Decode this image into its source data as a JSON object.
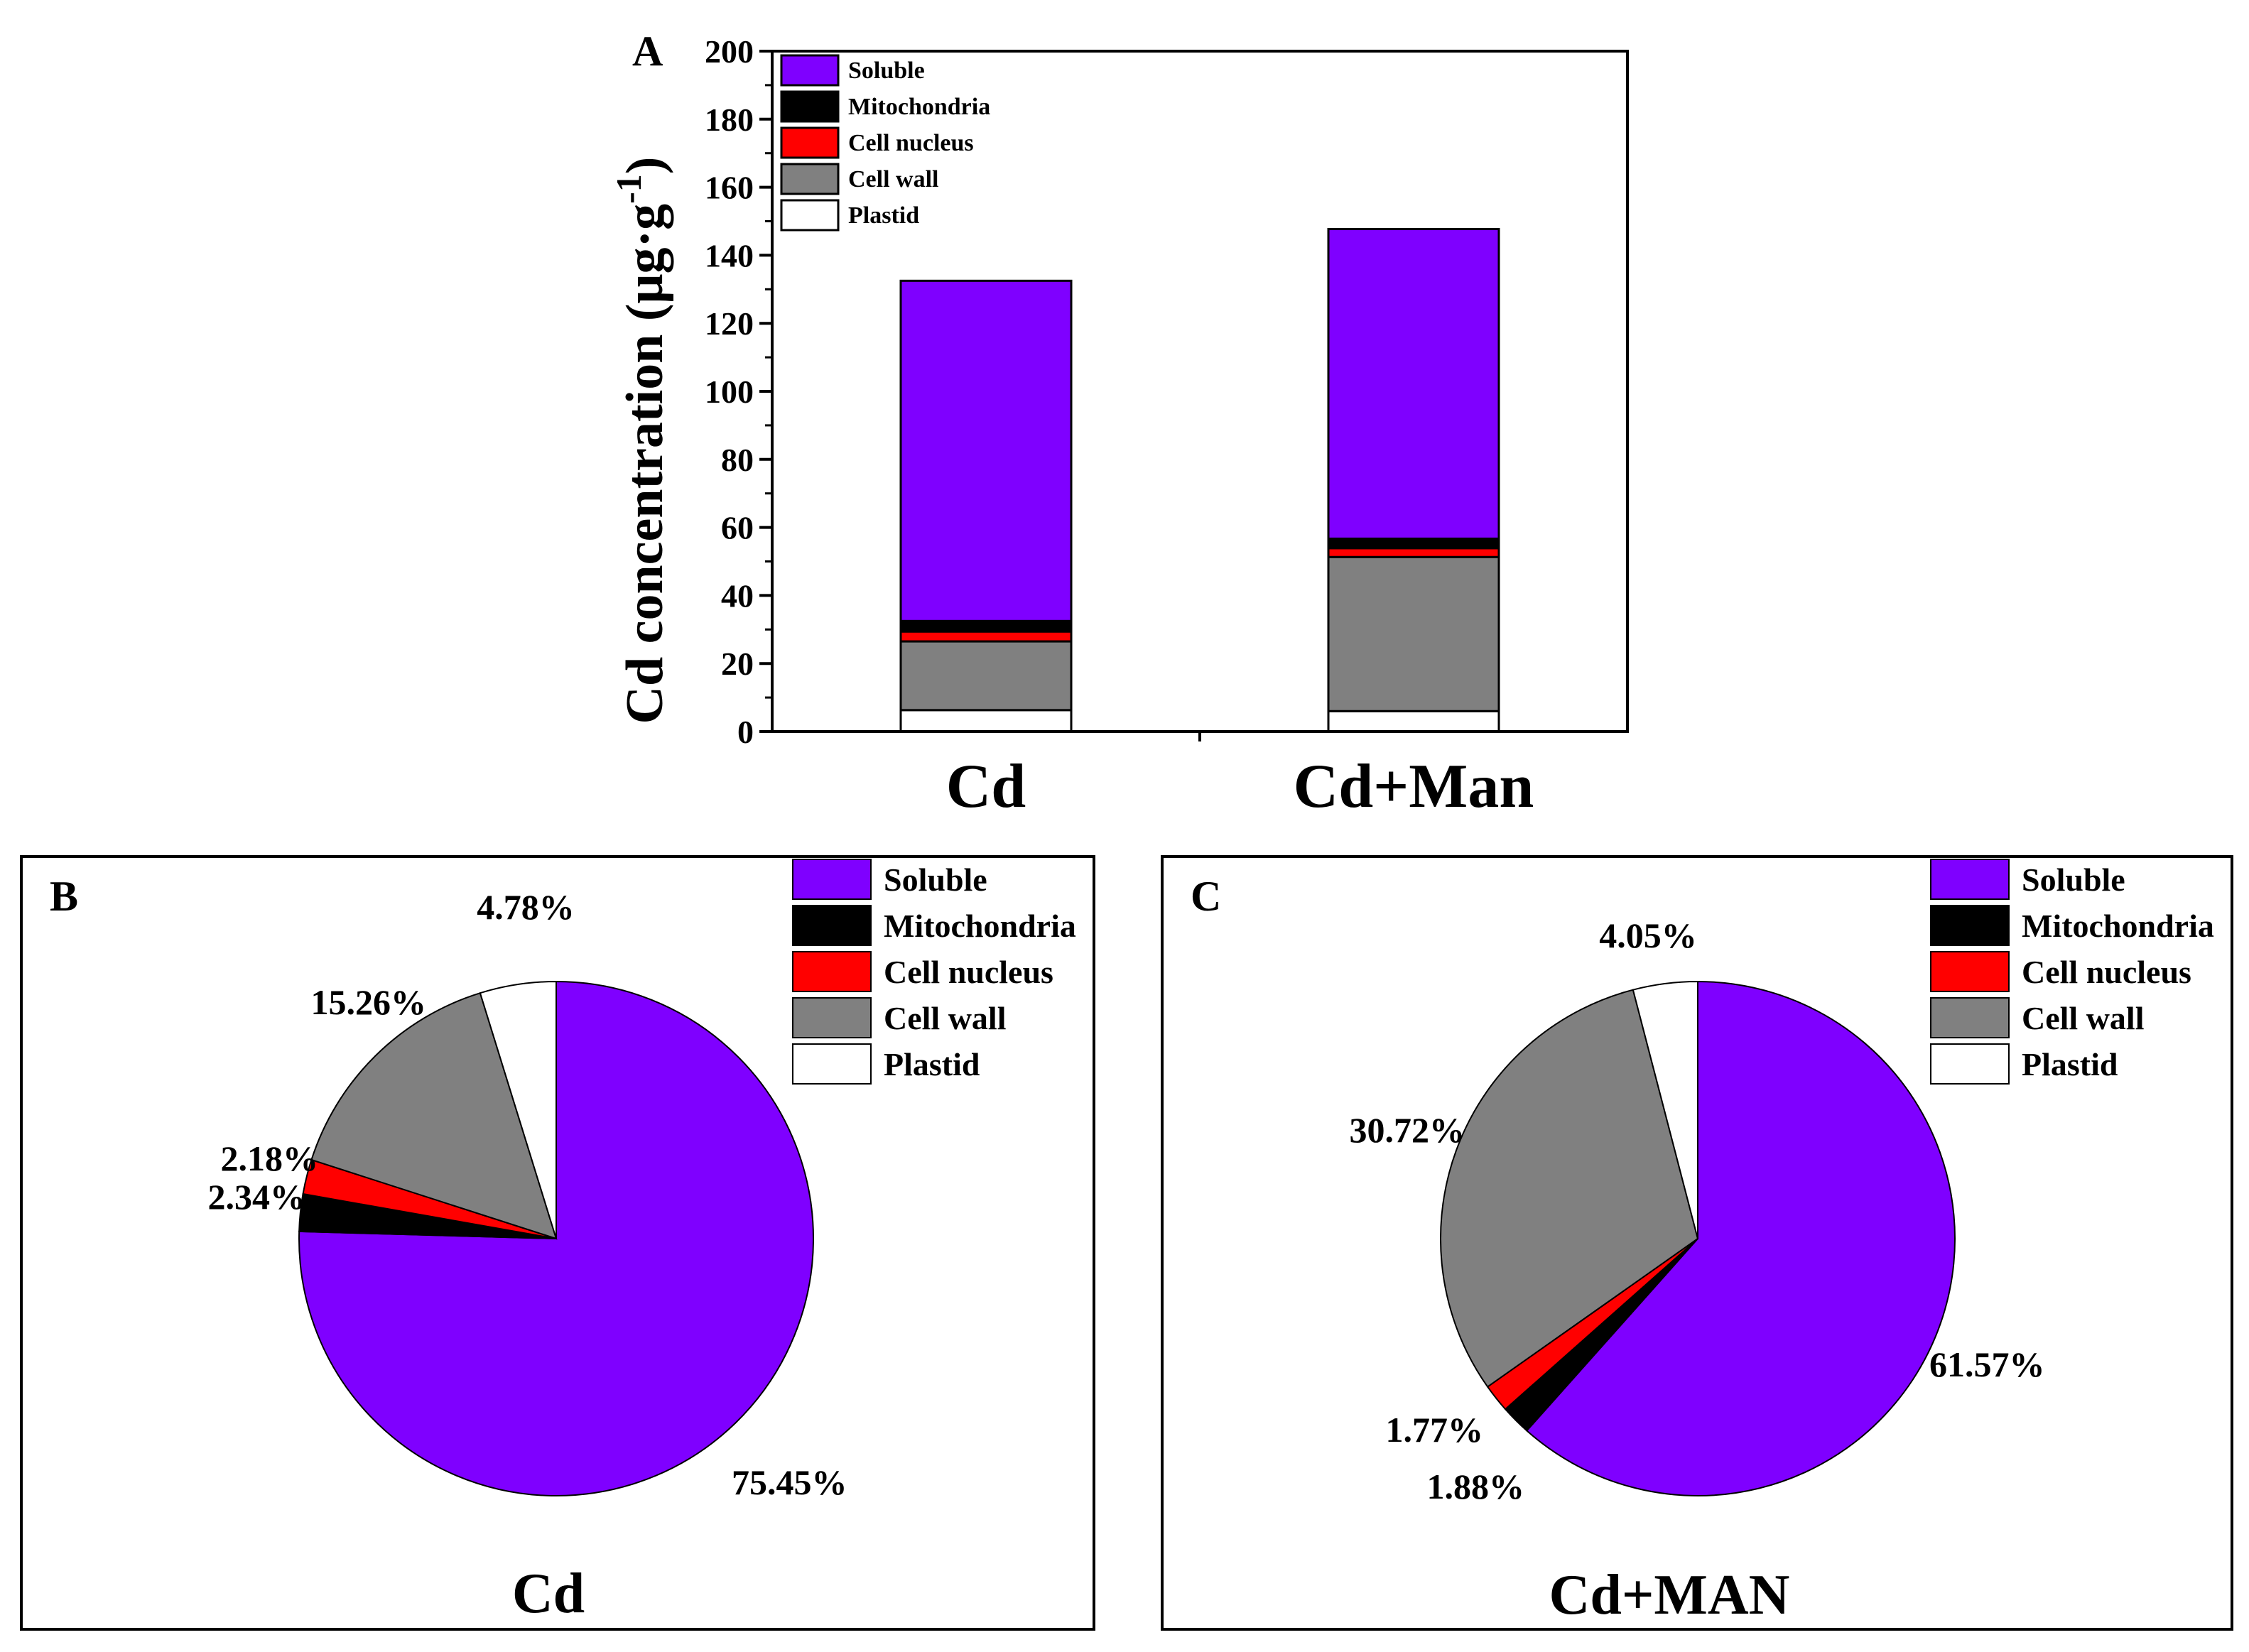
{
  "chart_data": [
    {
      "type": "bar",
      "stacked": true,
      "panel_label": "A",
      "ylabel": "Cd concentration (μg·g⁻¹)",
      "ylabel_main": "Cd concentration (μg·g",
      "ylabel_exp": "-1",
      "ylabel_close": ")",
      "xlabel": "",
      "ylim": [
        0,
        200
      ],
      "yticks": [
        0,
        20,
        40,
        60,
        80,
        100,
        120,
        140,
        160,
        180,
        200
      ],
      "categories": [
        "Cd",
        "Cd+Man"
      ],
      "series": [
        {
          "name": "Plastid",
          "color": "#ffffff",
          "values": [
            6.3,
            6.0
          ]
        },
        {
          "name": "Cell wall",
          "color": "#808080",
          "values": [
            20.2,
            45.3
          ]
        },
        {
          "name": "Cell nucleus",
          "color": "#ff0000",
          "values": [
            2.9,
            2.6
          ]
        },
        {
          "name": "Mitochondria",
          "color": "#000000",
          "values": [
            3.1,
            2.8
          ]
        },
        {
          "name": "Soluble",
          "color": "#7f00ff",
          "values": [
            100.0,
            91.0
          ]
        }
      ],
      "legend": [
        "Soluble",
        "Mitochondria",
        "Cell nucleus",
        "Cell wall",
        "Plastid"
      ],
      "legend_position": "top-left"
    },
    {
      "type": "pie",
      "panel_label": "B",
      "title": "Cd",
      "legend": [
        "Soluble",
        "Mitochondria",
        "Cell nucleus",
        "Cell wall",
        "Plastid"
      ],
      "legend_position": "top-right",
      "slices": [
        {
          "name": "Soluble",
          "value": 75.45,
          "label": "75.45%",
          "color": "#7f00ff"
        },
        {
          "name": "Mitochondria",
          "value": 2.34,
          "label": "2.34%",
          "color": "#000000"
        },
        {
          "name": "Cell nucleus",
          "value": 2.18,
          "label": "2.18%",
          "color": "#ff0000"
        },
        {
          "name": "Cell wall",
          "value": 15.26,
          "label": "15.26%",
          "color": "#808080"
        },
        {
          "name": "Plastid",
          "value": 4.78,
          "label": "4.78%",
          "color": "#ffffff"
        }
      ]
    },
    {
      "type": "pie",
      "panel_label": "C",
      "title": "Cd+MAN",
      "legend": [
        "Soluble",
        "Mitochondria",
        "Cell nucleus",
        "Cell wall",
        "Plastid"
      ],
      "legend_position": "top-right",
      "slices": [
        {
          "name": "Soluble",
          "value": 61.57,
          "label": "61.57%",
          "color": "#7f00ff"
        },
        {
          "name": "Mitochondria",
          "value": 1.88,
          "label": "1.88%",
          "color": "#000000"
        },
        {
          "name": "Cell nucleus",
          "value": 1.77,
          "label": "1.77%",
          "color": "#ff0000"
        },
        {
          "name": "Cell wall",
          "value": 30.72,
          "label": "30.72%",
          "color": "#808080"
        },
        {
          "name": "Plastid",
          "value": 4.05,
          "label": "4.05%",
          "color": "#ffffff"
        }
      ]
    }
  ]
}
